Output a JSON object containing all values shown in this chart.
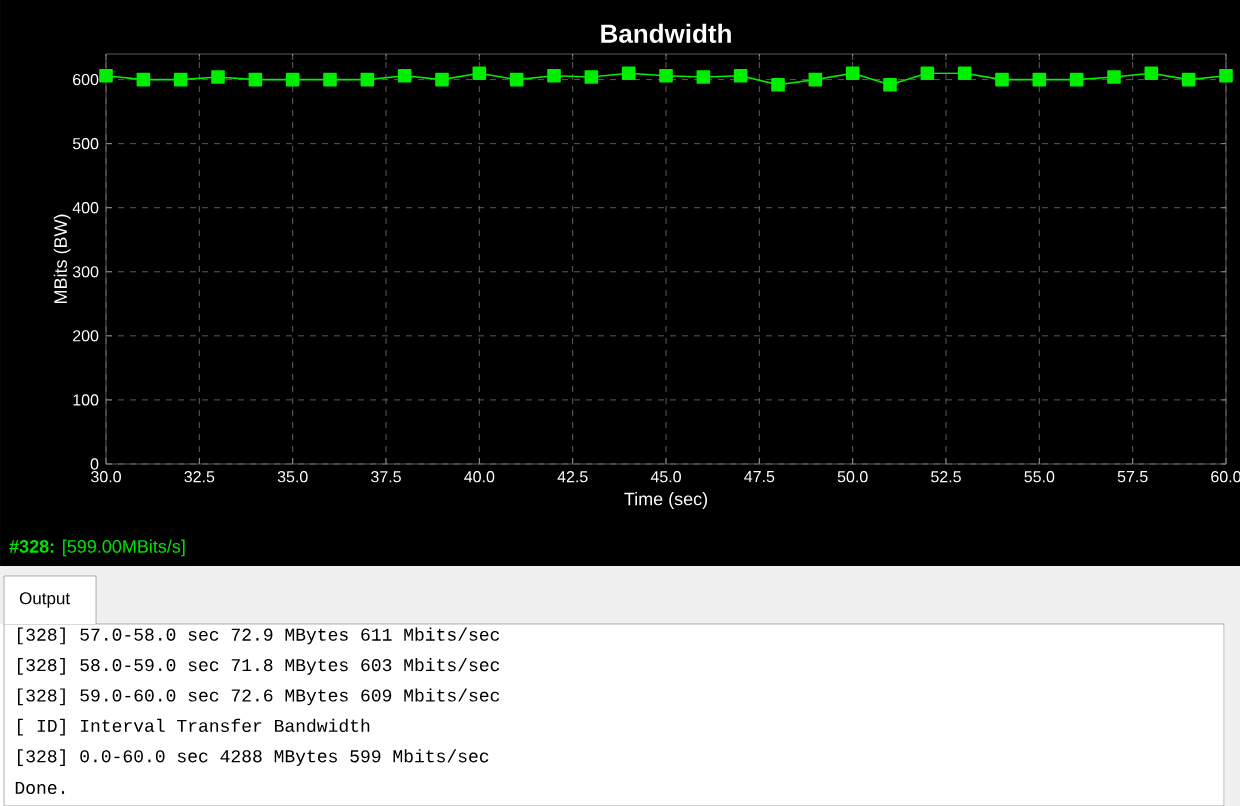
{
  "chart_data": {
    "type": "line",
    "title": "Bandwidth",
    "xlabel": "Time (sec)",
    "ylabel": "MBits (BW)",
    "x": [
      30,
      31,
      32,
      33,
      34,
      35,
      36,
      37,
      38,
      39,
      40,
      41,
      42,
      43,
      44,
      45,
      46,
      47,
      48,
      49,
      50,
      51,
      52,
      53,
      54,
      55,
      56,
      57,
      58,
      59,
      60
    ],
    "series": [
      {
        "color": "#00ee00",
        "values": [
          606,
          600,
          600,
          604,
          600,
          600,
          600,
          600,
          606,
          600,
          610,
          600,
          606,
          604,
          610,
          606,
          604,
          606,
          592,
          600,
          610,
          592,
          610,
          610,
          600,
          600,
          600,
          604,
          610,
          600,
          606
        ]
      }
    ],
    "xlim": [
      30,
      60
    ],
    "ylim": [
      0,
      640
    ],
    "xticks": [
      {
        "value": 30,
        "label": "30.0"
      },
      {
        "value": 32.5,
        "label": "32.5"
      },
      {
        "value": 35,
        "label": "35.0"
      },
      {
        "value": 37.5,
        "label": "37.5"
      },
      {
        "value": 40,
        "label": "40.0"
      },
      {
        "value": 42.5,
        "label": "42.5"
      },
      {
        "value": 45,
        "label": "45.0"
      },
      {
        "value": 47.5,
        "label": "47.5"
      },
      {
        "value": 50,
        "label": "50.0"
      },
      {
        "value": 52.5,
        "label": "52.5"
      },
      {
        "value": 55,
        "label": "55.0"
      },
      {
        "value": 57.5,
        "label": "57.5"
      },
      {
        "value": 60,
        "label": "60.0"
      }
    ],
    "yticks": [
      0,
      100,
      200,
      300,
      400,
      500,
      600
    ],
    "grid": true,
    "marker": "square",
    "line_style": "solid",
    "annotations": [
      "**#328:** [599.00MBits/s]",
      "Output",
      "[328] 57.0-58.0 sec  72.9 MBytes   611 Mbits/sec",
      "[328] 58.0-59.0 sec  71.8 MBytes   603 Mbits/sec",
      "[328] 59.0-60.0 sec  72.6 MBytes   609 Mbits/sec",
      "[ ID] Interval       Transfer     Bandwidth",
      "[328]  0.0-60.0 sec  4288 MBytes   599 Mbits/sec",
      "Done."
    ]
  }
}
